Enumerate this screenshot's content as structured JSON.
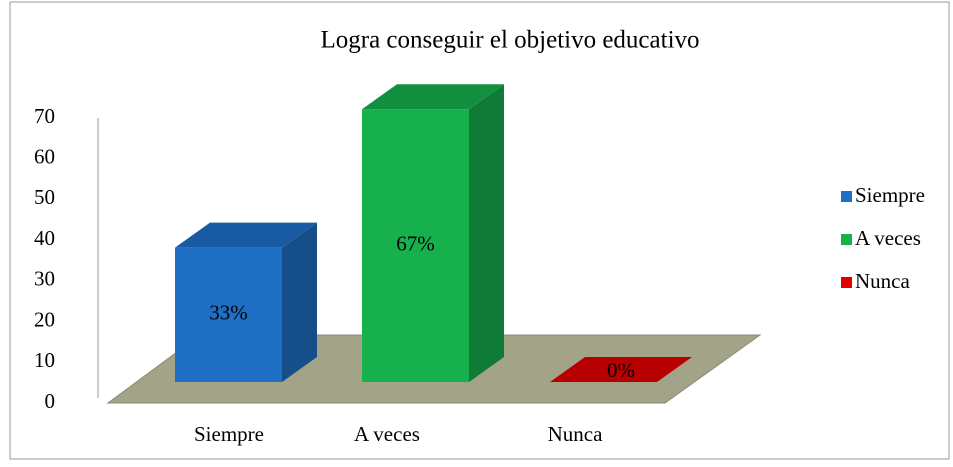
{
  "chart_data": {
    "type": "bar3d",
    "title": "Logra conseguir el objetivo educativo",
    "categories": [
      "Siempre",
      "A veces",
      "Nunca"
    ],
    "values": [
      33,
      67,
      0
    ],
    "value_labels": [
      "33%",
      "67%",
      "0%"
    ],
    "colors": [
      "#1f6fc5",
      "#16b04d",
      "#e00000"
    ],
    "ylim": [
      0,
      70
    ],
    "yticks": [
      0,
      10,
      20,
      30,
      40,
      50,
      60,
      70
    ],
    "grid": false,
    "legend": "right"
  }
}
